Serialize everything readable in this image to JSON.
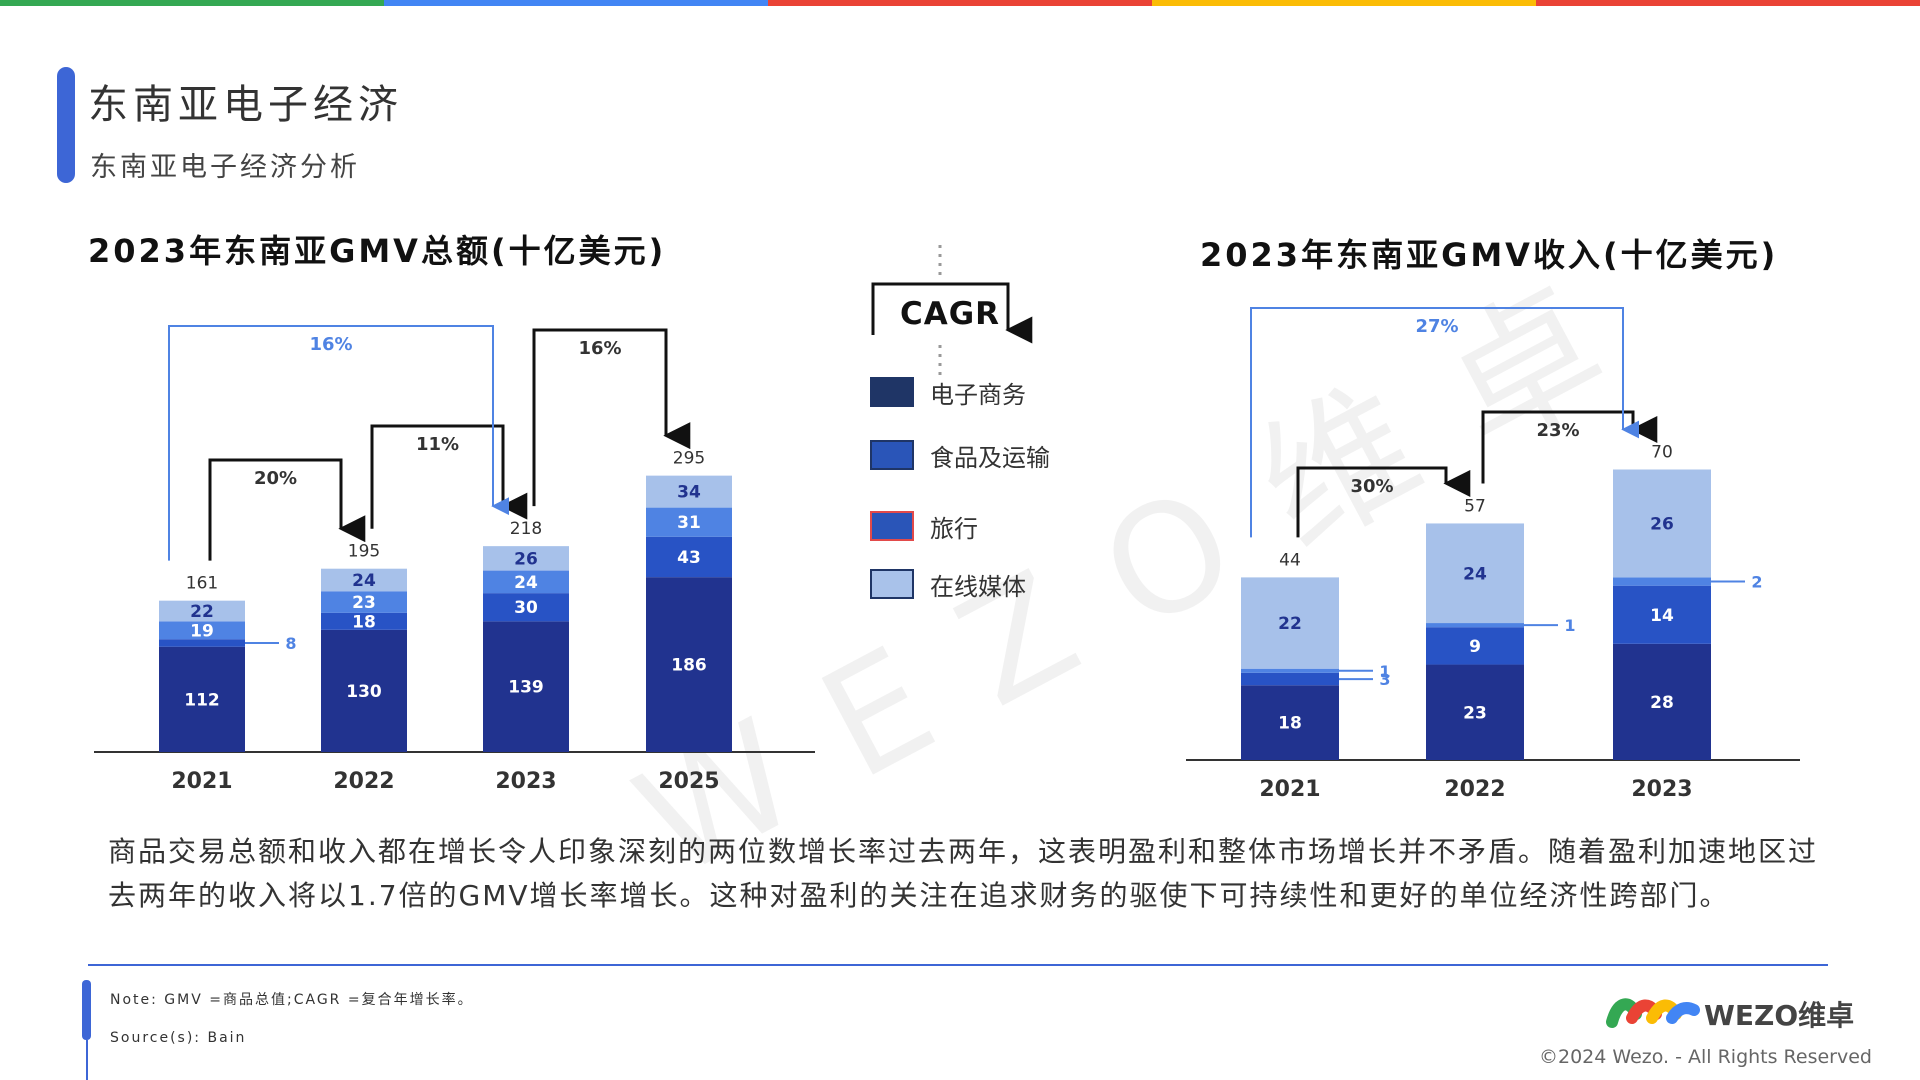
{
  "header": {
    "title": "东南亚电子经济",
    "subtitle": "东南亚电子经济分析",
    "top_bar_colors": [
      "#34a853",
      "#4285f4",
      "#ea4335",
      "#fbbc05",
      "#ea4335"
    ]
  },
  "colors": {
    "ecommerce": "#21338f",
    "food": "#2853c5",
    "travel": "#4f83e3",
    "media": "#a7c1ea"
  },
  "legend": {
    "cagr_label": "CAGR",
    "items": [
      {
        "label": "电子商务",
        "color": "#1f3566",
        "border": "#1f3566"
      },
      {
        "label": "食品及运输",
        "color": "#2a55b8",
        "border": "#1f3566"
      },
      {
        "label": "旅行",
        "color": "#2a55b8",
        "border": "#e24a4a"
      },
      {
        "label": "在线媒体",
        "color": "#a9c2ea",
        "border": "#1f3566"
      }
    ]
  },
  "chart_data": [
    {
      "type": "bar",
      "stacked": true,
      "title": "2023年东南亚GMV总额(十亿美元)",
      "categories": [
        "2021",
        "2022",
        "2023",
        "2025"
      ],
      "series": [
        {
          "key": "ecommerce",
          "values": [
            112,
            130,
            139,
            186
          ]
        },
        {
          "key": "food",
          "values": [
            8,
            18,
            30,
            43
          ]
        },
        {
          "key": "travel",
          "values": [
            19,
            23,
            24,
            31
          ]
        },
        {
          "key": "media",
          "values": [
            22,
            24,
            26,
            34
          ]
        }
      ],
      "totals": [
        161,
        195,
        218,
        295
      ],
      "cagr": [
        {
          "from": "2021",
          "to": "2022",
          "label": "20%"
        },
        {
          "from": "2022",
          "to": "2023",
          "label": "11%"
        },
        {
          "from": "2023",
          "to": "2025",
          "label": "16%"
        },
        {
          "from": "2021",
          "to": "2023",
          "label": "16%"
        }
      ]
    },
    {
      "type": "bar",
      "stacked": true,
      "title": "2023年东南亚GMV收入(十亿美元)",
      "categories": [
        "2021",
        "2022",
        "2023"
      ],
      "series": [
        {
          "key": "ecommerce",
          "values": [
            18,
            23,
            28
          ]
        },
        {
          "key": "food",
          "values": [
            3,
            9,
            14
          ]
        },
        {
          "key": "travel",
          "values": [
            1,
            1,
            2
          ]
        },
        {
          "key": "media",
          "values": [
            22,
            24,
            26
          ]
        }
      ],
      "totals": [
        44,
        57,
        70
      ],
      "cagr": [
        {
          "from": "2021",
          "to": "2022",
          "label": "30%"
        },
        {
          "from": "2022",
          "to": "2023",
          "label": "23%"
        },
        {
          "from": "2021",
          "to": "2023",
          "label": "27%"
        }
      ]
    }
  ],
  "watermark": "WEZO维卓",
  "description": "商品交易总额和收入都在增长令人印象深刻的两位数增长率过去两年，这表明盈利和整体市场增长并不矛盾。随着盈利加速地区过去两年的收入将以1.7倍的GMV增长率增长。这种对盈利的关注在追求财务的驱使下可持续性和更好的单位经济性跨部门。",
  "footer": {
    "note": "Note: GMV =商品总值;CAGR =复合年增长率。",
    "source": "Source(s): Bain",
    "logo_text": "WEZO维卓",
    "copyright": "©2024 Wezo. - All Rights Reserved"
  }
}
